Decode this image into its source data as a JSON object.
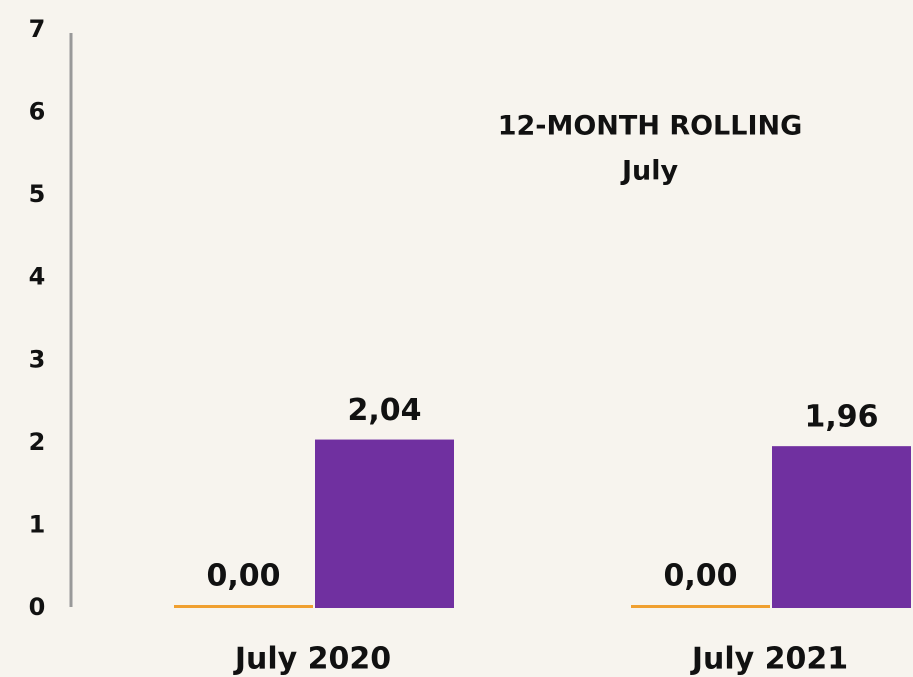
{
  "chart_data": {
    "type": "bar",
    "annotations": [
      "12-MONTH ROLLING",
      "July"
    ],
    "categories": [
      "July 2020",
      "July 2021"
    ],
    "series": [
      {
        "color": "#f0a030",
        "values": [
          0,
          0
        ],
        "value_labels": [
          "0,00",
          "0,00"
        ]
      },
      {
        "color": "#7030a0",
        "values": [
          2.04,
          1.96
        ],
        "value_labels": [
          "2,04",
          "1,96"
        ]
      }
    ],
    "ylim": [
      0,
      7
    ],
    "yticks": [
      0,
      1,
      2,
      3,
      4,
      5,
      6,
      7
    ],
    "grid": false
  }
}
